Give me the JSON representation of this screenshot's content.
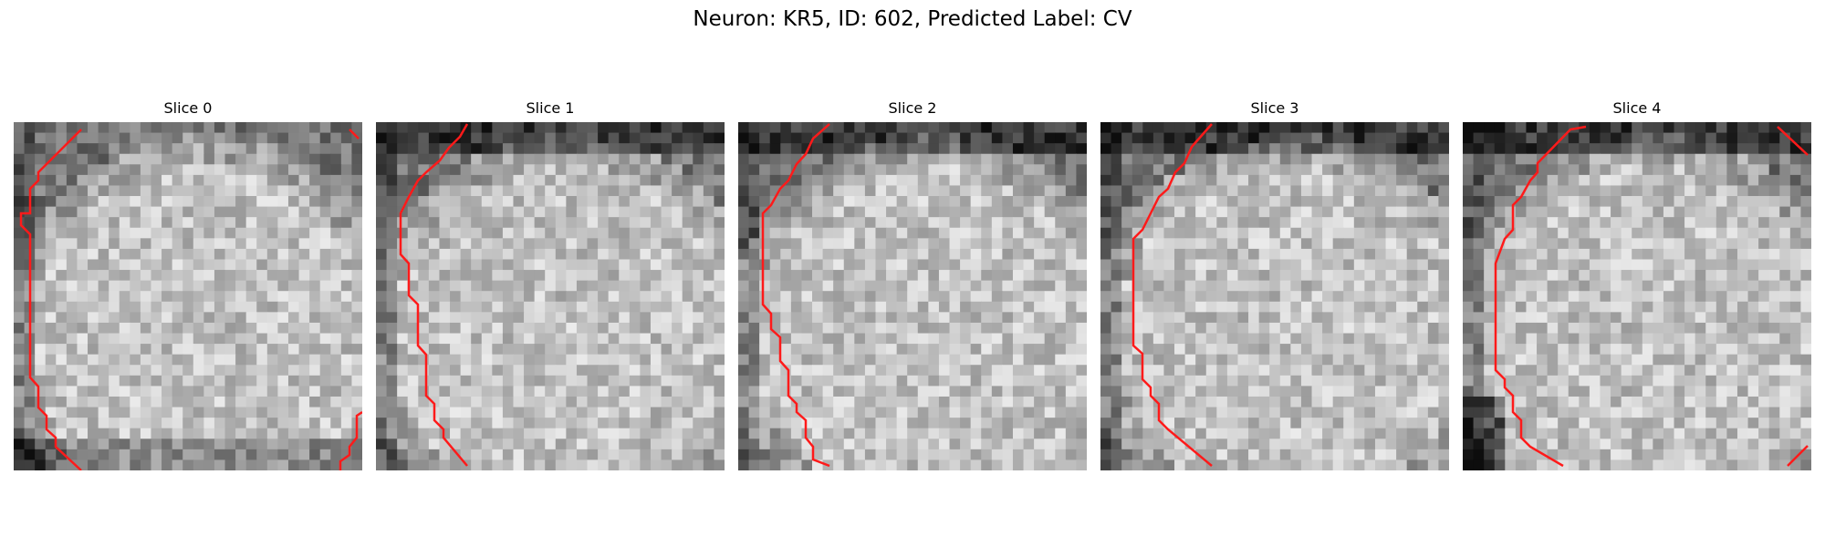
{
  "figure": {
    "title": "Neuron: KR5, ID: 602, Predicted Label: CV"
  },
  "slices": [
    {
      "title": "Slice 0"
    },
    {
      "title": "Slice 1"
    },
    {
      "title": "Slice 2"
    },
    {
      "title": "Slice 3"
    },
    {
      "title": "Slice 4"
    }
  ],
  "colors": {
    "contour": "#ff1a1a",
    "background": "#ffffff"
  }
}
